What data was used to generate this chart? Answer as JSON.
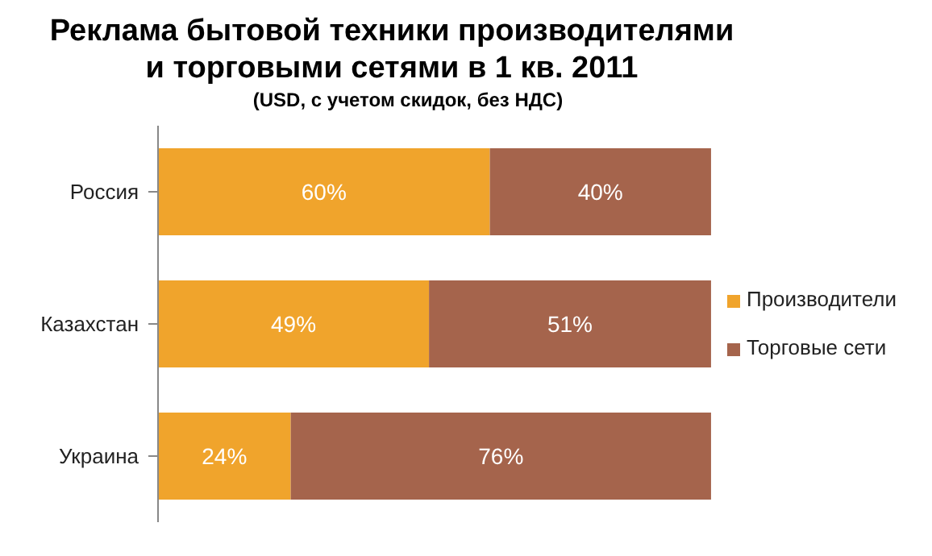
{
  "chart_data": {
    "type": "bar",
    "orientation": "horizontal",
    "stacked": true,
    "title": "Реклама бытовой техники производителями\nи торговыми сетями в 1 кв. 2011",
    "subtitle": "(USD, с учетом скидок,  без НДС)",
    "categories": [
      "Россия",
      "Казахстан",
      "Украина"
    ],
    "xlim": [
      0,
      100
    ],
    "tick_labels": "y",
    "legend": "right",
    "series": [
      {
        "name": "Производители",
        "color": "#f0a42c",
        "values": [
          60,
          49,
          24
        ],
        "value_labels": [
          "60%",
          "49%",
          "24%"
        ]
      },
      {
        "name": "Торговые сети",
        "color": "#a5644c",
        "values": [
          40,
          51,
          76
        ],
        "value_labels": [
          "40%",
          "51%",
          "76%"
        ]
      }
    ]
  }
}
